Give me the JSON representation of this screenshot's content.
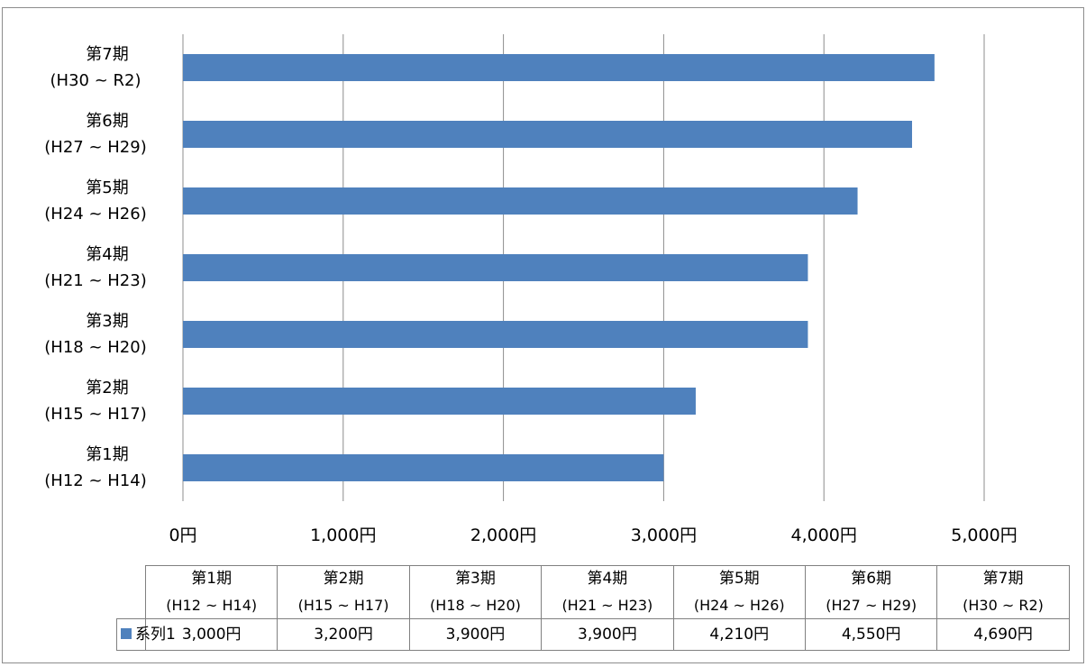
{
  "chart_data": {
    "type": "bar",
    "orientation": "horizontal",
    "categories": [
      {
        "period": "第1期",
        "range": "(H12 ~ H14)"
      },
      {
        "period": "第2期",
        "range": "(H15 ~ H17)"
      },
      {
        "period": "第3期",
        "range": "(H18 ~ H20)"
      },
      {
        "period": "第4期",
        "range": "(H21 ~ H23)"
      },
      {
        "period": "第5期",
        "range": "(H24 ~ H26)"
      },
      {
        "period": "第6期",
        "range": "(H27 ~ H29)"
      },
      {
        "period": "第7期",
        "range": "(H30 ~ R2)"
      }
    ],
    "series": [
      {
        "name": "系列1",
        "values": [
          3000,
          3200,
          3900,
          3900,
          4210,
          4550,
          4690
        ],
        "value_labels": [
          "3,000円",
          "3,200円",
          "3,900円",
          "3,900円",
          "4,210円",
          "4,550円",
          "4,690円"
        ],
        "color": "#4f81bd"
      }
    ],
    "xlim": [
      0,
      5000
    ],
    "xticks": [
      0,
      1000,
      2000,
      3000,
      4000,
      5000
    ],
    "xtick_labels": [
      "0円",
      "1,000円",
      "2,000円",
      "3,000円",
      "4,000円",
      "5,000円"
    ],
    "grid": "vertical",
    "gridline_color": "#8c8c8c",
    "data_table": true,
    "legend_placement": "data-table"
  }
}
